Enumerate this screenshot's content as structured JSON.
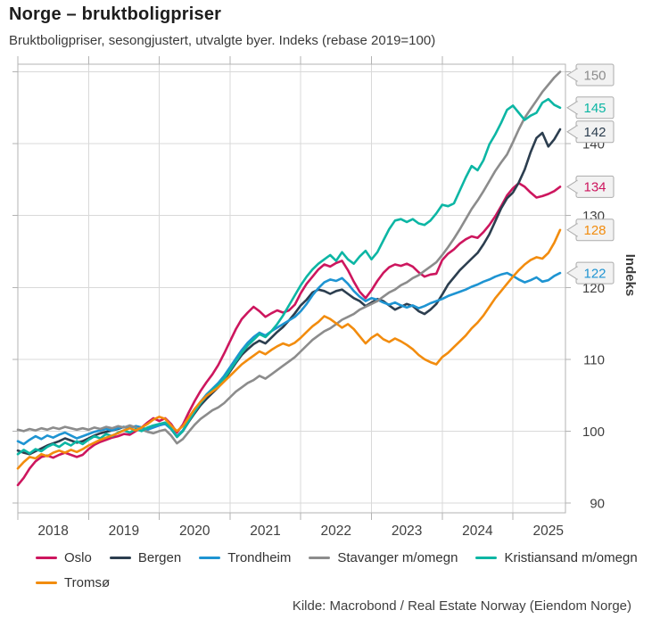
{
  "page": {
    "title": "Norge – bruktboligpriser",
    "subtitle": "Bruktboligpriser, sesongjustert, utvalgte byer. Indeks (rebase 2019=100)",
    "source": "Kilde: Macrobond / Real Estate Norway (Eiendom Norge)"
  },
  "chart_data": {
    "type": "line",
    "title": "Norge – bruktboligpriser",
    "subtitle": "Bruktboligpriser, sesongjustert, utvalgte byer. Indeks (rebase 2019=100)",
    "xlabel": "",
    "ylabel": "Indeks",
    "x_start": "2018-01",
    "x_end": "2025-09",
    "frequency": "monthly",
    "ylim": [
      88.5,
      151
    ],
    "yticks": [
      90,
      100,
      110,
      120,
      130,
      140,
      150
    ],
    "xticks": [
      2018,
      2019,
      2020,
      2021,
      2022,
      2023,
      2024,
      2025
    ],
    "grid": true,
    "legend_position": "bottom",
    "colors": {
      "grid": "#d9d9d9",
      "axis": "#b3b3b3",
      "tick_label": "#3f3f3f",
      "callout_bg": "#f2f2f2",
      "callout_border": "#ababab"
    },
    "series": [
      {
        "name": "Oslo",
        "color": "#cd165e",
        "end_label": 134,
        "values": [
          92.5,
          93.5,
          94.8,
          95.8,
          96.4,
          96.6,
          96.3,
          96.7,
          97.0,
          96.7,
          96.4,
          96.7,
          97.5,
          98.1,
          98.5,
          98.8,
          99.1,
          99.3,
          99.6,
          99.5,
          100.0,
          100.5,
          101.2,
          101.8,
          101.4,
          101.8,
          101.0,
          99.8,
          100.9,
          102.6,
          104.2,
          105.6,
          106.8,
          107.9,
          109.2,
          110.8,
          112.5,
          114.2,
          115.6,
          116.5,
          117.3,
          116.7,
          115.9,
          116.4,
          116.8,
          116.5,
          116.8,
          117.6,
          119.2,
          120.5,
          121.5,
          122.5,
          123.2,
          122.9,
          123.4,
          123.7,
          122.4,
          120.8,
          119.4,
          118.5,
          119.6,
          120.9,
          122.0,
          122.8,
          123.2,
          123.0,
          123.3,
          122.9,
          122.1,
          121.5,
          121.8,
          121.9,
          123.8,
          124.7,
          125.3,
          126.1,
          126.7,
          127.1,
          126.9,
          127.7,
          128.7,
          129.9,
          131.3,
          132.8,
          133.8,
          134.5,
          134.0,
          133.2,
          132.5,
          132.7,
          133.0,
          133.4,
          134.0
        ]
      },
      {
        "name": "Bergen",
        "color": "#2c3e4f",
        "end_label": 142,
        "values": [
          97.3,
          97.0,
          96.8,
          97.2,
          97.6,
          98.0,
          98.3,
          98.6,
          99.0,
          98.7,
          98.4,
          98.6,
          99.0,
          99.4,
          99.7,
          99.9,
          100.1,
          100.3,
          100.6,
          100.4,
          100.7,
          100.5,
          100.2,
          100.6,
          100.9,
          101.1,
          100.3,
          99.2,
          100.0,
          101.3,
          102.5,
          103.6,
          104.5,
          105.3,
          106.1,
          107.1,
          108.3,
          109.5,
          110.6,
          111.4,
          112.1,
          112.6,
          112.2,
          113.0,
          113.8,
          114.5,
          115.4,
          116.4,
          117.5,
          118.3,
          119.3,
          119.7,
          119.5,
          119.1,
          119.5,
          119.7,
          119.1,
          118.5,
          118.1,
          117.4,
          117.9,
          118.4,
          118.1,
          117.5,
          116.9,
          117.3,
          117.7,
          117.4,
          116.7,
          116.3,
          116.9,
          117.7,
          119.0,
          120.4,
          121.4,
          122.4,
          123.2,
          124.0,
          124.8,
          126.0,
          127.4,
          129.2,
          131.0,
          132.4,
          133.2,
          134.6,
          136.4,
          138.8,
          140.8,
          141.5,
          139.6,
          140.6,
          142.0
        ]
      },
      {
        "name": "Trondheim",
        "color": "#1e94d2",
        "end_label": 122,
        "values": [
          98.6,
          98.2,
          98.8,
          99.3,
          98.9,
          99.4,
          99.1,
          99.5,
          99.8,
          99.4,
          99.0,
          99.3,
          99.6,
          99.9,
          100.1,
          100.3,
          100.1,
          100.4,
          100.6,
          100.4,
          100.7,
          100.5,
          100.2,
          100.5,
          100.8,
          101.0,
          100.3,
          99.3,
          100.1,
          101.5,
          102.9,
          104.1,
          105.1,
          105.9,
          106.7,
          107.7,
          108.9,
          110.1,
          111.3,
          112.3,
          113.1,
          113.7,
          113.3,
          113.9,
          114.4,
          114.9,
          115.4,
          115.9,
          116.7,
          117.7,
          118.9,
          119.9,
          120.7,
          121.1,
          120.9,
          121.3,
          120.5,
          119.5,
          118.7,
          118.1,
          118.5,
          118.3,
          117.9,
          117.6,
          117.9,
          117.5,
          117.2,
          117.5,
          117.1,
          117.4,
          117.8,
          118.1,
          118.4,
          118.8,
          119.1,
          119.4,
          119.7,
          120.1,
          120.4,
          120.8,
          121.1,
          121.5,
          121.8,
          122.0,
          121.6,
          121.1,
          120.7,
          121.0,
          121.4,
          120.8,
          121.0,
          121.6,
          122.0
        ]
      },
      {
        "name": "Stavanger m/omegn",
        "color": "#8c8c8c",
        "end_label": 150,
        "values": [
          100.2,
          100.0,
          100.3,
          100.1,
          100.4,
          100.2,
          100.5,
          100.3,
          100.6,
          100.4,
          100.2,
          100.4,
          100.2,
          100.5,
          100.3,
          100.6,
          100.4,
          100.7,
          100.5,
          100.8,
          100.5,
          100.2,
          99.9,
          99.7,
          100.0,
          100.2,
          99.4,
          98.3,
          98.9,
          99.9,
          100.9,
          101.7,
          102.3,
          102.9,
          103.3,
          103.9,
          104.7,
          105.5,
          106.1,
          106.7,
          107.1,
          107.7,
          107.3,
          107.9,
          108.5,
          109.1,
          109.7,
          110.3,
          111.1,
          111.9,
          112.7,
          113.3,
          113.9,
          114.3,
          114.9,
          115.5,
          115.9,
          116.3,
          116.9,
          117.3,
          117.7,
          118.1,
          118.7,
          119.3,
          119.7,
          120.3,
          120.7,
          121.3,
          121.7,
          122.3,
          122.9,
          123.5,
          124.5,
          125.6,
          126.8,
          128.1,
          129.5,
          130.9,
          132.1,
          133.4,
          134.8,
          136.2,
          137.4,
          138.5,
          140.2,
          142.0,
          143.6,
          144.8,
          146.0,
          147.2,
          148.2,
          149.2,
          150.0
        ]
      },
      {
        "name": "Kristiansand m/omegn",
        "color": "#0cb6a4",
        "end_label": 145,
        "values": [
          96.8,
          97.4,
          96.9,
          97.5,
          97.2,
          97.8,
          98.2,
          97.8,
          98.4,
          98.0,
          98.6,
          98.2,
          98.8,
          99.3,
          99.0,
          99.6,
          99.3,
          99.8,
          100.1,
          99.8,
          100.3,
          100.0,
          100.5,
          100.8,
          101.0,
          101.2,
          100.4,
          99.2,
          100.0,
          101.4,
          102.7,
          103.9,
          104.9,
          105.7,
          106.4,
          107.3,
          108.5,
          109.7,
          110.9,
          111.9,
          112.7,
          113.5,
          113.1,
          113.9,
          114.9,
          116.1,
          117.5,
          118.9,
          120.3,
          121.5,
          122.5,
          123.3,
          123.9,
          124.5,
          123.7,
          124.9,
          123.9,
          123.3,
          124.3,
          125.1,
          123.9,
          124.9,
          126.5,
          128.1,
          129.3,
          129.5,
          129.1,
          129.5,
          128.9,
          128.7,
          129.3,
          130.3,
          131.5,
          131.3,
          131.7,
          133.5,
          135.3,
          136.9,
          136.3,
          137.7,
          139.9,
          141.3,
          142.9,
          144.7,
          145.3,
          144.3,
          143.3,
          143.9,
          144.3,
          145.7,
          146.2,
          145.4,
          145.0
        ]
      },
      {
        "name": "Tromsø",
        "color": "#f28c0e",
        "end_label": 128,
        "values": [
          94.8,
          95.7,
          96.4,
          96.2,
          96.8,
          96.5,
          97.0,
          97.3,
          97.0,
          97.4,
          97.1,
          97.5,
          98.0,
          98.4,
          98.8,
          99.1,
          99.4,
          99.7,
          100.1,
          100.4,
          100.1,
          100.5,
          101.0,
          101.6,
          102.0,
          101.7,
          100.8,
          100.0,
          100.7,
          101.9,
          103.1,
          104.1,
          104.9,
          105.5,
          106.1,
          106.9,
          107.7,
          108.5,
          109.3,
          109.9,
          110.5,
          111.1,
          110.7,
          111.3,
          111.8,
          112.2,
          111.9,
          112.3,
          113.0,
          113.8,
          114.6,
          115.2,
          116.0,
          115.6,
          115.0,
          114.4,
          114.9,
          114.2,
          113.2,
          112.2,
          113.0,
          113.5,
          112.8,
          112.4,
          112.9,
          112.5,
          112.0,
          111.4,
          110.6,
          110.0,
          109.6,
          109.3,
          110.3,
          110.9,
          111.7,
          112.5,
          113.3,
          114.3,
          115.1,
          116.1,
          117.3,
          118.5,
          119.5,
          120.5,
          121.5,
          122.4,
          123.2,
          123.8,
          124.2,
          124.0,
          124.8,
          126.2,
          128.0
        ]
      }
    ]
  }
}
